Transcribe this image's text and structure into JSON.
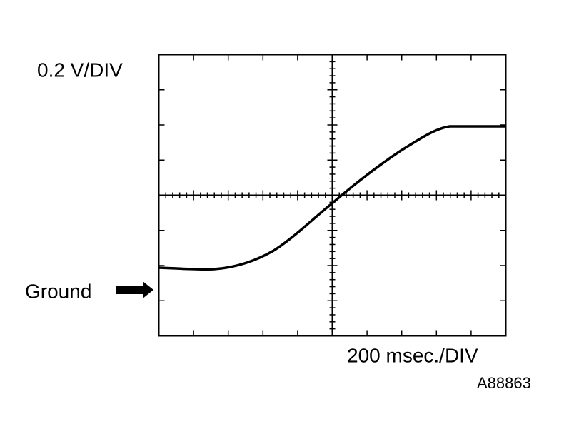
{
  "volts_label": "0.2 V/DIV",
  "time_label": "200 msec./DIV",
  "ground_label": "Ground",
  "figure_id": "A88863"
}
